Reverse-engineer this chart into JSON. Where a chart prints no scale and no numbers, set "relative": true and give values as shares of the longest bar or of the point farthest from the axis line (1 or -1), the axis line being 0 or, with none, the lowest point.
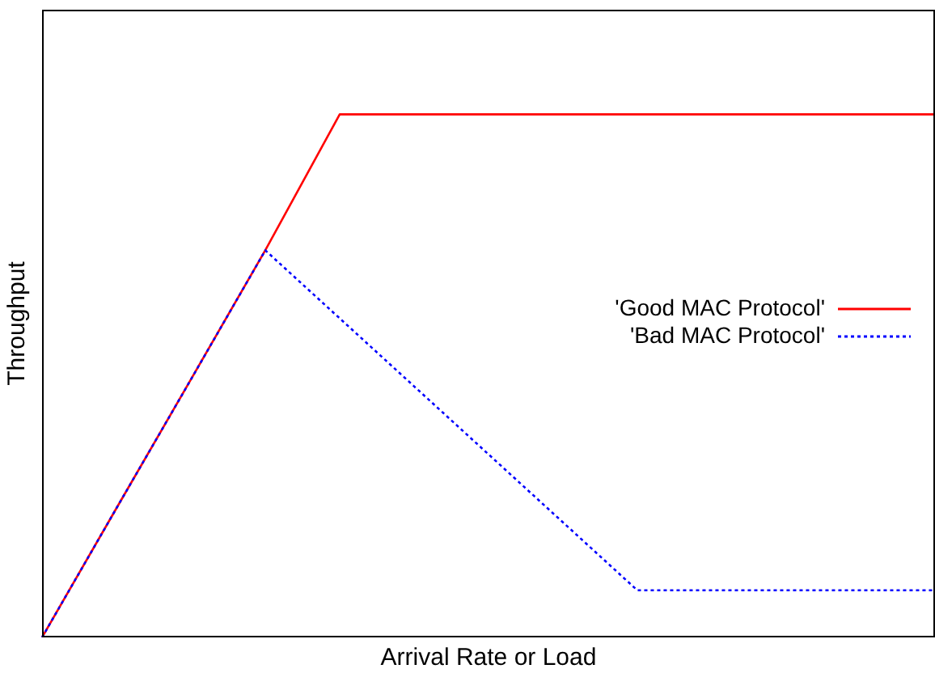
{
  "chart_data": {
    "type": "line",
    "relative": true,
    "xlabel": "Arrival Rate or Load",
    "ylabel": "Throughput",
    "categories": [
      null,
      null,
      null,
      null,
      null,
      null,
      null,
      null,
      null,
      null,
      null,
      null,
      null
    ],
    "series": [
      {
        "name": "'Good MAC Protocol'",
        "color": "#ff0000",
        "line_style": "solid",
        "values": [
          0,
          0.247,
          0.493,
          0.74,
          1,
          1,
          1,
          1,
          1,
          1,
          1,
          1,
          1
        ]
      },
      {
        "name": "'Bad MAC Protocol'",
        "color": "#0000ff",
        "line_style": "dotted",
        "values": [
          0,
          0.247,
          0.493,
          0.74,
          0.61,
          0.48,
          0.35,
          0.22,
          0.09,
          0.09,
          0.09,
          0.09,
          0.09
        ]
      }
    ],
    "legend": "right",
    "grid": false,
    "marker": "none",
    "tick_labels": false
  }
}
